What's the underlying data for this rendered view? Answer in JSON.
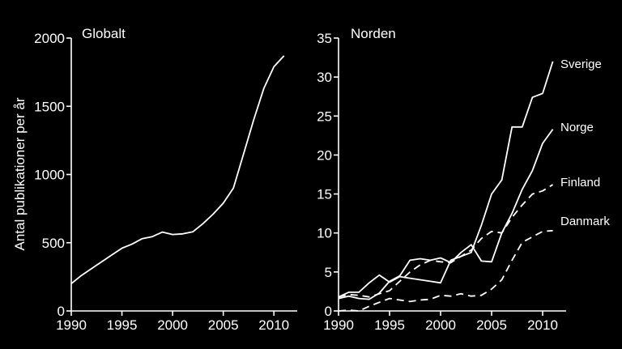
{
  "chart_data": [
    {
      "type": "line",
      "title": "Globalt",
      "ylabel": "Antal publikationer per år",
      "xlim": [
        1990,
        2012
      ],
      "ylim": [
        0,
        2000
      ],
      "xticks": [
        "1990",
        "1995",
        "2000",
        "2005",
        "2010"
      ],
      "yticks": [
        "0",
        "500",
        "1000",
        "1500",
        "2000"
      ],
      "series": [
        {
          "x": [
            1990,
            1991,
            1992,
            1993,
            1994,
            1995,
            1996,
            1997,
            1998,
            1999,
            2000,
            2001,
            2002,
            2003,
            2004,
            2005,
            2006,
            2007,
            2008,
            2009,
            2010,
            2011
          ],
          "y": [
            200,
            260,
            310,
            360,
            410,
            460,
            490,
            530,
            545,
            578,
            560,
            565,
            580,
            640,
            710,
            790,
            900,
            1150,
            1400,
            1630,
            1790,
            1870
          ],
          "dash": "solid"
        }
      ]
    },
    {
      "type": "line",
      "title": "Norden",
      "xlim": [
        1990,
        2012
      ],
      "ylim": [
        0,
        35
      ],
      "xticks": [
        "1990",
        "1995",
        "2000",
        "2005",
        "2010"
      ],
      "yticks": [
        "0",
        "5",
        "10",
        "15",
        "20",
        "25",
        "30",
        "35"
      ],
      "series": [
        {
          "name": "Sverige",
          "x": [
            1990,
            1991,
            1992,
            1993,
            1994,
            1995,
            1996,
            1997,
            1998,
            1999,
            2000,
            2001,
            2002,
            2003,
            2004,
            2005,
            2006,
            2007,
            2008,
            2009,
            2010,
            2011
          ],
          "y": [
            1.8,
            2.4,
            2.4,
            3.6,
            4.6,
            3.7,
            4.4,
            4.2,
            4.0,
            3.8,
            3.6,
            6.5,
            7.0,
            7.5,
            11.0,
            15.0,
            16.8,
            23.6,
            23.6,
            27.4,
            27.9,
            32.0
          ],
          "dash": "solid"
        },
        {
          "name": "Norge",
          "x": [
            1990,
            1991,
            1992,
            1993,
            1994,
            1995,
            1996,
            1997,
            1998,
            1999,
            2000,
            2001,
            2002,
            2003,
            2004,
            2005,
            2006,
            2007,
            2008,
            2009,
            2010,
            2011
          ],
          "y": [
            1.6,
            1.9,
            1.6,
            1.5,
            2.3,
            3.8,
            4.5,
            6.5,
            6.7,
            6.5,
            6.8,
            6.2,
            7.5,
            8.5,
            6.4,
            6.3,
            10.0,
            12.5,
            15.6,
            18.0,
            21.5,
            23.3
          ],
          "dash": "solid"
        },
        {
          "name": "Finland",
          "x": [
            1990,
            1991,
            1992,
            1993,
            1994,
            1995,
            1996,
            1997,
            1998,
            1999,
            2000,
            2001,
            2002,
            2003,
            2004,
            2005,
            2006,
            2007,
            2008,
            2009,
            2010,
            2011
          ],
          "y": [
            1.8,
            2.1,
            2.0,
            1.8,
            2.2,
            2.6,
            3.8,
            5.0,
            5.9,
            6.5,
            6.3,
            6.2,
            7.0,
            7.8,
            9.3,
            10.2,
            10.0,
            12.0,
            13.6,
            15.0,
            15.4,
            16.2
          ],
          "dash": "dash"
        },
        {
          "name": "Danmark",
          "x": [
            1990,
            1991,
            1992,
            1993,
            1994,
            1995,
            1996,
            1997,
            1998,
            1999,
            2000,
            2001,
            2002,
            2003,
            2004,
            2005,
            2006,
            2007,
            2008,
            2009,
            2010,
            2011
          ],
          "y": [
            0.0,
            0.1,
            0.0,
            0.6,
            1.1,
            1.6,
            1.4,
            1.2,
            1.4,
            1.5,
            2.0,
            1.9,
            2.2,
            1.9,
            2.0,
            2.8,
            4.0,
            6.5,
            8.8,
            9.5,
            10.2,
            10.3
          ],
          "dash": "dash"
        }
      ]
    }
  ]
}
